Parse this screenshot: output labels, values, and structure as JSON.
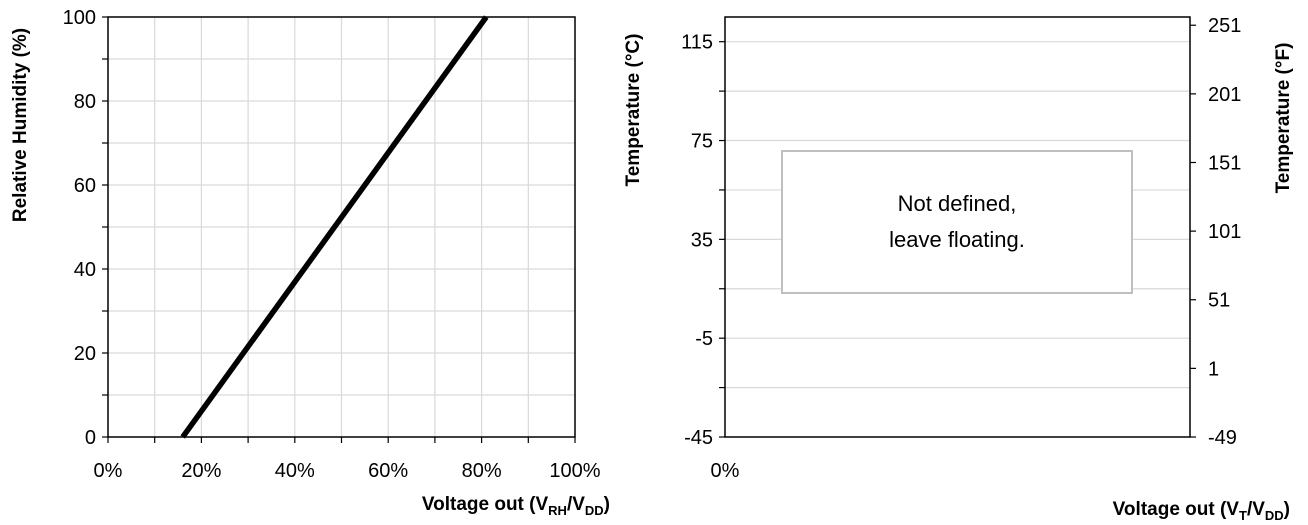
{
  "chart_data": [
    {
      "type": "line",
      "title": "",
      "ylabel": "Relative Humidity (%)",
      "xlabel": {
        "main": "Voltage out (V",
        "s1": "RH",
        "mid": "/V",
        "s2": "DD",
        "end": ")"
      },
      "x_ticks": [
        "0%",
        "20%",
        "40%",
        "60%",
        "80%",
        "100%"
      ],
      "y_ticks": [
        "0",
        "20",
        "40",
        "60",
        "80",
        "100"
      ],
      "xlim": [
        0,
        100
      ],
      "ylim": [
        0,
        100
      ],
      "grid": true,
      "series": [
        {
          "x": [
            16,
            81
          ],
          "y": [
            0,
            100
          ]
        }
      ],
      "line_color": "#000000"
    },
    {
      "type": "line",
      "title": "",
      "ylabel": "Temperature (°C)",
      "y2label": "Temperature (°F)",
      "xlabel": {
        "main": "Voltage out (V",
        "s1": "T",
        "mid": "/V",
        "s2": "DD",
        "end": ")"
      },
      "x_ticks": [
        "0%"
      ],
      "y_ticks": [
        "-45",
        "-5",
        "35",
        "75",
        "115"
      ],
      "y2_ticks": [
        "-49",
        "1",
        "51",
        "101",
        "151",
        "201",
        "251"
      ],
      "ylim": [
        -45,
        125
      ],
      "grid": true,
      "series": [],
      "annotation": {
        "line1": "Not defined,",
        "line2": "leave  floating."
      }
    }
  ]
}
